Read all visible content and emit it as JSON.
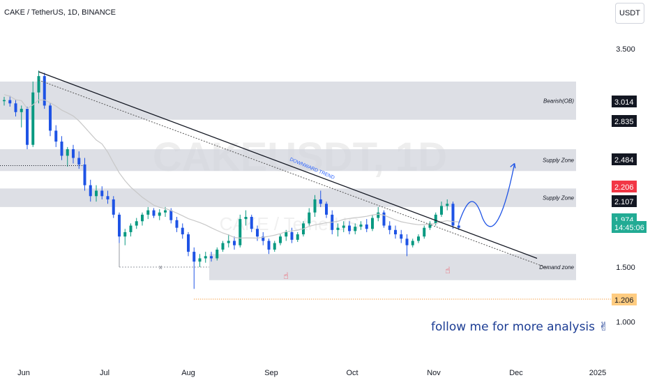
{
  "header": {
    "symbol_line": "CAKE / TetherUS, 1D, BINANCE"
  },
  "currency_button": "USDT",
  "watermark": {
    "big": "CAKEUSDT, 1D",
    "small": "CAKE / TetherUS"
  },
  "follow_text": "follow me for more analysis",
  "follow_icon": "victory-hand-icon",
  "colors": {
    "up": "#089981",
    "down": "#1e53e5",
    "zone": "#d1d4dc",
    "ma": "#c8c8c8",
    "accent": "#2962ff",
    "red_tag": "#f23645",
    "teal_tag": "#22ab94"
  },
  "chart_data": {
    "type": "candlestick",
    "y_axis_ticks": [
      "3.500",
      "1.500",
      "1.000"
    ],
    "x_axis_labels": [
      "Jun",
      "Jul",
      "Aug",
      "Sep",
      "Oct",
      "Nov",
      "Dec",
      "2025"
    ],
    "price_tags": [
      {
        "label": "3.014",
        "price": 3.014,
        "style": "black"
      },
      {
        "label": "2.835",
        "price": 2.835,
        "style": "black"
      },
      {
        "label": "2.484",
        "price": 2.484,
        "style": "black"
      },
      {
        "label": "2.206",
        "price": 2.206,
        "style": "red"
      },
      {
        "label": "2.107",
        "price": 2.107,
        "style": "black"
      },
      {
        "label": "1.974",
        "price": 1.974,
        "style": "teal"
      },
      {
        "label": "14:45:06",
        "price": 1.88,
        "style": "teal"
      },
      {
        "label": "1.206",
        "price": 1.206,
        "style": "orange"
      }
    ],
    "zones": [
      {
        "label": "Bearish(OB)",
        "top": 3.2,
        "bottom": 2.85
      },
      {
        "label": "Supply Zone",
        "top": 2.58,
        "bottom": 2.38
      },
      {
        "label": "Supply Zone",
        "top": 2.22,
        "bottom": 2.05
      },
      {
        "label": "Demand zone",
        "top": 1.62,
        "bottom": 1.38
      }
    ],
    "trend_label": "DOWNWARD TREND",
    "x_marker": "x",
    "candles": [
      [
        3.02,
        3.06,
        2.98,
        3.03
      ],
      [
        3.03,
        3.07,
        2.97,
        3.0
      ],
      [
        3.0,
        3.03,
        2.88,
        2.92
      ],
      [
        2.92,
        2.98,
        2.78,
        2.95
      ],
      [
        2.95,
        2.97,
        2.58,
        2.62
      ],
      [
        2.62,
        3.2,
        2.6,
        3.1
      ],
      [
        3.1,
        3.3,
        3.0,
        3.25
      ],
      [
        3.25,
        3.28,
        2.95,
        2.98
      ],
      [
        2.98,
        3.0,
        2.7,
        2.75
      ],
      [
        2.75,
        2.8,
        2.6,
        2.65
      ],
      [
        2.65,
        2.7,
        2.48,
        2.52
      ],
      [
        2.52,
        2.6,
        2.42,
        2.58
      ],
      [
        2.58,
        2.62,
        2.45,
        2.5
      ],
      [
        2.5,
        2.56,
        2.4,
        2.44
      ],
      [
        2.44,
        2.5,
        2.2,
        2.25
      ],
      [
        2.25,
        2.3,
        2.1,
        2.15
      ],
      [
        2.15,
        2.25,
        2.1,
        2.2
      ],
      [
        2.2,
        2.24,
        2.12,
        2.15
      ],
      [
        2.15,
        2.2,
        2.08,
        2.12
      ],
      [
        2.12,
        2.15,
        1.95,
        1.98
      ],
      [
        1.98,
        2.0,
        1.72,
        1.78
      ],
      [
        1.78,
        1.85,
        1.7,
        1.82
      ],
      [
        1.82,
        1.9,
        1.78,
        1.88
      ],
      [
        1.88,
        1.95,
        1.85,
        1.92
      ],
      [
        1.92,
        2.0,
        1.88,
        1.98
      ],
      [
        1.98,
        2.05,
        1.94,
        2.02
      ],
      [
        2.02,
        2.04,
        1.95,
        1.97
      ],
      [
        1.97,
        2.03,
        1.93,
        2.0
      ],
      [
        2.0,
        2.05,
        1.96,
        2.02
      ],
      [
        2.02,
        2.04,
        1.9,
        1.93
      ],
      [
        1.93,
        1.96,
        1.82,
        1.86
      ],
      [
        1.86,
        1.9,
        1.76,
        1.8
      ],
      [
        1.8,
        1.82,
        1.6,
        1.64
      ],
      [
        1.64,
        1.68,
        1.3,
        1.55
      ],
      [
        1.55,
        1.62,
        1.5,
        1.58
      ],
      [
        1.58,
        1.64,
        1.54,
        1.6
      ],
      [
        1.6,
        1.64,
        1.55,
        1.58
      ],
      [
        1.58,
        1.68,
        1.56,
        1.66
      ],
      [
        1.66,
        1.74,
        1.64,
        1.72
      ],
      [
        1.72,
        1.8,
        1.68,
        1.74
      ],
      [
        1.74,
        1.78,
        1.66,
        1.7
      ],
      [
        1.7,
        1.98,
        1.68,
        1.94
      ],
      [
        1.94,
        2.02,
        1.88,
        1.96
      ],
      [
        1.96,
        1.98,
        1.82,
        1.85
      ],
      [
        1.85,
        1.88,
        1.74,
        1.78
      ],
      [
        1.78,
        1.82,
        1.7,
        1.74
      ],
      [
        1.74,
        1.76,
        1.62,
        1.66
      ],
      [
        1.66,
        1.74,
        1.64,
        1.72
      ],
      [
        1.72,
        1.8,
        1.7,
        1.78
      ],
      [
        1.78,
        1.84,
        1.74,
        1.82
      ],
      [
        1.82,
        1.86,
        1.72,
        1.75
      ],
      [
        1.75,
        1.82,
        1.73,
        1.8
      ],
      [
        1.8,
        1.92,
        1.78,
        1.9
      ],
      [
        1.9,
        2.04,
        1.88,
        2.0
      ],
      [
        2.0,
        2.16,
        1.96,
        2.12
      ],
      [
        2.12,
        2.2,
        2.05,
        2.08
      ],
      [
        2.08,
        2.1,
        1.95,
        1.98
      ],
      [
        1.98,
        2.02,
        1.8,
        1.84
      ],
      [
        1.84,
        1.9,
        1.78,
        1.86
      ],
      [
        1.86,
        1.92,
        1.82,
        1.88
      ],
      [
        1.88,
        1.92,
        1.8,
        1.83
      ],
      [
        1.83,
        1.9,
        1.8,
        1.87
      ],
      [
        1.87,
        1.92,
        1.84,
        1.89
      ],
      [
        1.89,
        1.94,
        1.82,
        1.85
      ],
      [
        1.85,
        1.98,
        1.83,
        1.95
      ],
      [
        1.95,
        2.05,
        1.92,
        2.0
      ],
      [
        2.0,
        2.02,
        1.86,
        1.88
      ],
      [
        1.88,
        1.92,
        1.8,
        1.84
      ],
      [
        1.84,
        1.88,
        1.76,
        1.8
      ],
      [
        1.8,
        1.84,
        1.72,
        1.76
      ],
      [
        1.76,
        1.8,
        1.6,
        1.7
      ],
      [
        1.7,
        1.76,
        1.68,
        1.74
      ],
      [
        1.74,
        1.8,
        1.72,
        1.78
      ],
      [
        1.78,
        1.88,
        1.76,
        1.86
      ],
      [
        1.86,
        1.92,
        1.84,
        1.9
      ],
      [
        1.9,
        2.0,
        1.88,
        1.98
      ],
      [
        1.98,
        2.1,
        1.96,
        2.06
      ],
      [
        2.06,
        2.12,
        2.02,
        2.08
      ],
      [
        2.08,
        2.1,
        1.85,
        1.88
      ],
      [
        1.88,
        1.9,
        1.84,
        1.86
      ]
    ],
    "projection_target": 2.45,
    "low_level": 1.206
  }
}
